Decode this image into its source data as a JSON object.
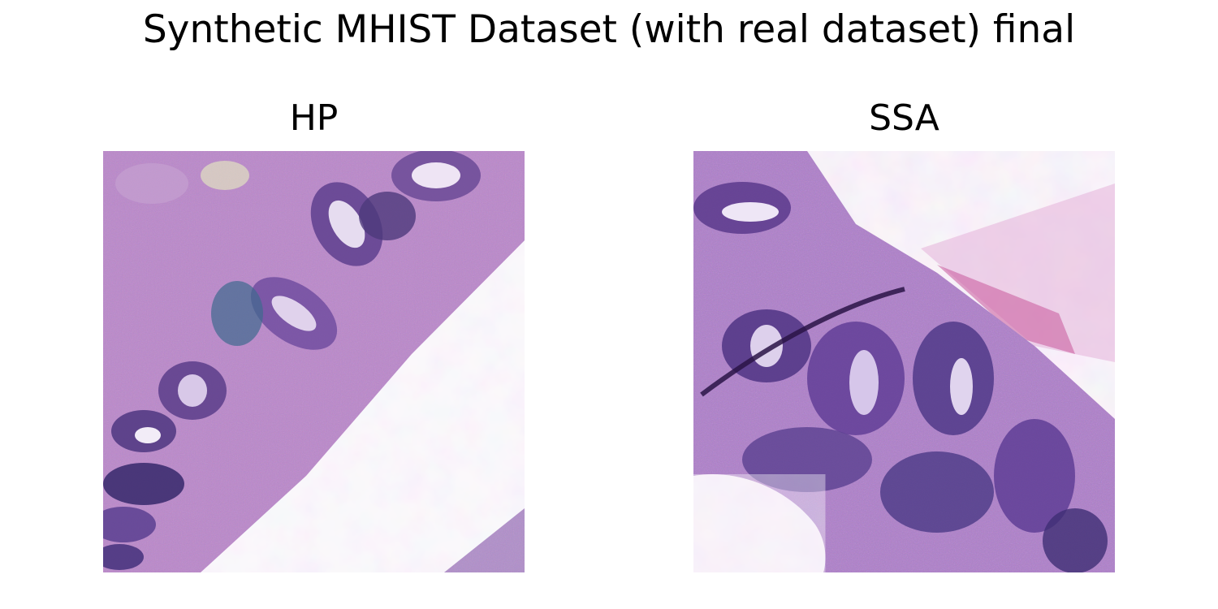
{
  "figure": {
    "title": "Synthetic MHIST Dataset (with real dataset) final"
  },
  "panels": [
    {
      "title": "HP",
      "image_description_icon": "histology-tissue-image"
    },
    {
      "title": "SSA",
      "image_description_icon": "histology-tissue-image"
    }
  ],
  "colors": {
    "background": "#ffffff",
    "stroma_pink": "#d9a6d6",
    "nuclei_purple": "#5a3a8c",
    "pale_lumen": "#f4eef9",
    "text": "#000000"
  }
}
